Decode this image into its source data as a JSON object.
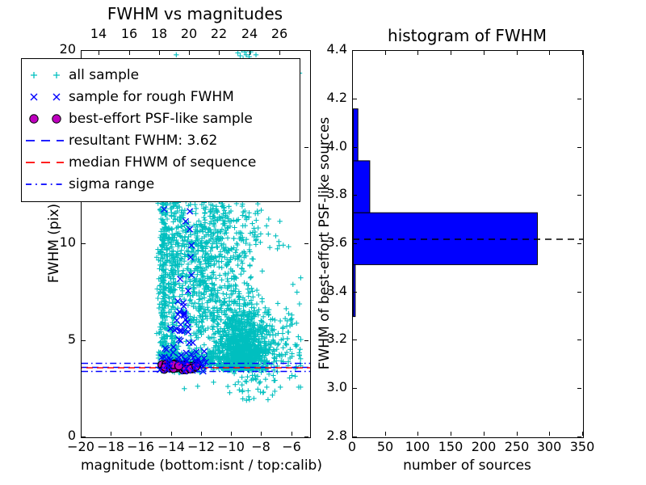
{
  "colors": {
    "cyan": "#00bfbf",
    "blue": "#0000ff",
    "magenta": "#bf00bf",
    "red": "#ff0000",
    "black": "#000000",
    "background": "#ffffff"
  },
  "chart_data": [
    {
      "type": "scatter",
      "title": "FWHM vs magnitudes",
      "xlabel": "magnitude (bottom:isnt / top:calib)",
      "ylabel": "FWHM (pix)",
      "xlim": [
        -20,
        -4.8
      ],
      "ylim": [
        0,
        20
      ],
      "calib_offset": 32.8,
      "x_ticks_bottom": [
        {
          "v": -20,
          "label": "−20"
        },
        {
          "v": -18,
          "label": "−18"
        },
        {
          "v": -16,
          "label": "−16"
        },
        {
          "v": -14,
          "label": "−14"
        },
        {
          "v": -12,
          "label": "−12"
        },
        {
          "v": -10,
          "label": "−10"
        },
        {
          "v": -8,
          "label": "−8"
        },
        {
          "v": -6,
          "label": "−6"
        }
      ],
      "x_ticks_top": [
        {
          "v": 14,
          "label": "14"
        },
        {
          "v": 16,
          "label": "16"
        },
        {
          "v": 18,
          "label": "18"
        },
        {
          "v": 20,
          "label": "20"
        },
        {
          "v": 22,
          "label": "22"
        },
        {
          "v": 24,
          "label": "24"
        },
        {
          "v": 26,
          "label": "26"
        }
      ],
      "y_ticks": [
        {
          "v": 0,
          "label": "0"
        },
        {
          "v": 5,
          "label": "5"
        },
        {
          "v": 10,
          "label": "10"
        },
        {
          "v": 15,
          "label": "15"
        },
        {
          "v": 20,
          "label": "20"
        }
      ],
      "lines": [
        {
          "name": "resultant FWHM",
          "value": 3.62,
          "style": "dashed",
          "color": "#0000ff"
        },
        {
          "name": "median FHWM of sequence",
          "value": 3.6,
          "style": "dashed",
          "color": "#ff0000",
          "dashoffset": 7
        },
        {
          "name": "sigma range upper",
          "value": 3.83,
          "style": "dashdot",
          "color": "#0000ff"
        },
        {
          "name": "sigma range lower",
          "value": 3.41,
          "style": "dashdot",
          "color": "#0000ff"
        }
      ],
      "seed": 7,
      "series": [
        {
          "name": "all sample",
          "marker": "plus",
          "color": "#00bfbf",
          "clusters": [
            {
              "n": 260,
              "x": {
                "dist": "gauss",
                "mu": -14.55,
                "sigma": 0.16,
                "min": -15.0,
                "max": -14.1
              },
              "y": {
                "dist": "uniform",
                "min": 3.4,
                "max": 12.3
              }
            },
            {
              "n": 170,
              "x": {
                "dist": "gauss",
                "mu": -13.95,
                "sigma": 0.22,
                "min": -14.5,
                "max": -13.4
              },
              "y": {
                "dist": "uniform",
                "min": 3.6,
                "max": 12.6
              }
            },
            {
              "n": 620,
              "x": {
                "dist": "gauss",
                "mu": -11.7,
                "sigma": 1.15,
                "min": -13.9,
                "max": -8.8
              },
              "y": {
                "dist": "gauss",
                "mu": 8.2,
                "sigma": 2.1,
                "min": 4.2,
                "max": 12.7
              }
            },
            {
              "n": 1150,
              "x": {
                "dist": "gauss",
                "mu": -9.35,
                "sigma": 0.8,
                "min": -11.2,
                "max": -7.2
              },
              "y": {
                "dist": "halfgauss",
                "base": 3.45,
                "scale": 1.7,
                "max": 9.5
              }
            },
            {
              "n": 260,
              "x": {
                "dist": "uniform",
                "min": -14.9,
                "max": -11.2
              },
              "y": {
                "dist": "gauss",
                "mu": 3.95,
                "sigma": 0.3,
                "min": 3.35,
                "max": 5.0
              }
            },
            {
              "n": 130,
              "x": {
                "dist": "uniform",
                "min": -8.3,
                "max": -5.4
              },
              "y": {
                "dist": "gauss",
                "mu": 4.7,
                "sigma": 1.2,
                "min": 2.6,
                "max": 8.5
              }
            },
            {
              "n": 220,
              "x": {
                "dist": "uniform",
                "min": -13.7,
                "max": -8.2
              },
              "y": {
                "dist": "uniform",
                "min": 9.0,
                "max": 12.7
              }
            },
            {
              "n": 90,
              "x": {
                "dist": "uniform",
                "min": -15.0,
                "max": -5.4
              },
              "y": {
                "dist": "uniform",
                "min": 2.5,
                "max": 19.6
              }
            },
            {
              "n": 34,
              "x": {
                "dist": "uniform",
                "min": -10.6,
                "max": -7.0
              },
              "y": {
                "dist": "uniform",
                "min": 1.8,
                "max": 3.3
              }
            }
          ],
          "points": [
            [
              -13.7,
              19.8
            ],
            [
              -9.6,
              19.9
            ],
            [
              -9.45,
              19.75
            ],
            [
              -9.35,
              20.05
            ],
            [
              -9.25,
              19.6
            ],
            [
              -9.15,
              19.95
            ],
            [
              -9.05,
              19.8
            ],
            [
              -8.95,
              20.1
            ],
            [
              -8.85,
              19.7
            ],
            [
              -8.75,
              19.95
            ],
            [
              -8.4,
              19.8
            ],
            [
              -7.6,
              1.95
            ],
            [
              -9.3,
              2.36
            ]
          ]
        },
        {
          "name": "sample for rough FWHM",
          "marker": "x",
          "color": "#0000ff",
          "clusters": [
            {
              "n": 16,
              "x": {
                "dist": "gauss",
                "mu": -13.5,
                "sigma": 0.28,
                "min": -14.1,
                "max": -12.9
              },
              "y": {
                "dist": "gauss",
                "mu": 5.9,
                "sigma": 0.5,
                "min": 5.0,
                "max": 7.0
              }
            },
            {
              "n": 42,
              "x": {
                "dist": "uniform",
                "min": -14.8,
                "max": -11.6
              },
              "y": {
                "dist": "gauss",
                "mu": 3.95,
                "sigma": 0.35,
                "min": 3.3,
                "max": 4.9
              }
            }
          ],
          "points": [
            [
              -14.51,
              11.8
            ],
            [
              -12.8,
              11.7
            ],
            [
              -13.07,
              11.18
            ],
            [
              -12.8,
              10.77
            ],
            [
              -12.69,
              9.94
            ],
            [
              -12.75,
              9.32
            ],
            [
              -12.69,
              8.4
            ],
            [
              -13.44,
              8.2
            ],
            [
              -12.91,
              7.58
            ],
            [
              -13.23,
              6.96
            ],
            [
              -13.6,
              7.04
            ],
            [
              -13.49,
              6.5
            ],
            [
              -13.07,
              6.09
            ],
            [
              -12.91,
              5.71
            ],
            [
              -13.17,
              5.51
            ],
            [
              -12.6,
              4.9
            ]
          ]
        },
        {
          "name": "best-effort PSF-like sample",
          "marker": "circle",
          "color": "#bf00bf",
          "edge": "#000000",
          "clusters": [
            {
              "n": 30,
              "x": {
                "dist": "uniform",
                "min": -14.75,
                "max": -12.2
              },
              "y": {
                "dist": "gauss",
                "mu": 3.66,
                "sigma": 0.09,
                "min": 3.5,
                "max": 3.85
              }
            }
          ],
          "points": []
        }
      ],
      "legend": [
        {
          "label": "all sample",
          "marker": "plus",
          "color": "#00bfbf"
        },
        {
          "label": "sample for rough FWHM",
          "marker": "x",
          "color": "#0000ff"
        },
        {
          "label": "best-effort PSF-like sample",
          "marker": "circle",
          "color": "#bf00bf"
        },
        {
          "label": "resultant FWHM: 3.62",
          "marker": "dash",
          "color": "#0000ff"
        },
        {
          "label": "median FHWM of sequence",
          "marker": "dash",
          "color": "#ff0000"
        },
        {
          "label": "sigma range",
          "marker": "dashdot",
          "color": "#0000ff"
        }
      ]
    },
    {
      "type": "bar",
      "orientation": "horizontal",
      "title": "histogram of FWHM",
      "xlabel": "number of sources",
      "ylabel": "FWHM of best-effort PSF-like sources",
      "xlim": [
        0,
        350
      ],
      "ylim": [
        2.8,
        4.4
      ],
      "x_ticks": [
        {
          "v": 0,
          "label": "0"
        },
        {
          "v": 50,
          "label": "50"
        },
        {
          "v": 100,
          "label": "100"
        },
        {
          "v": 150,
          "label": "150"
        },
        {
          "v": 200,
          "label": "200"
        },
        {
          "v": 250,
          "label": "250"
        },
        {
          "v": 300,
          "label": "300"
        },
        {
          "v": 350,
          "label": "350"
        }
      ],
      "y_ticks": [
        {
          "v": 2.8,
          "label": "2.8"
        },
        {
          "v": 3.0,
          "label": "3.0"
        },
        {
          "v": 3.2,
          "label": "3.2"
        },
        {
          "v": 3.4,
          "label": "3.4"
        },
        {
          "v": 3.6,
          "label": "3.6"
        },
        {
          "v": 3.8,
          "label": "3.8"
        },
        {
          "v": 4.0,
          "label": "4.0"
        },
        {
          "v": 4.2,
          "label": "4.2"
        },
        {
          "v": 4.4,
          "label": "4.4"
        }
      ],
      "bins": [
        {
          "from": 3.3,
          "to": 3.515,
          "count": 3
        },
        {
          "from": 3.515,
          "to": 3.73,
          "count": 280
        },
        {
          "from": 3.73,
          "to": 3.945,
          "count": 25
        },
        {
          "from": 3.945,
          "to": 4.16,
          "count": 7
        }
      ],
      "bar_color": "#0000ff",
      "bar_edge_color": "#000000",
      "mean_line": {
        "value": 3.62,
        "style": "dashed",
        "color": "#000000"
      }
    }
  ]
}
